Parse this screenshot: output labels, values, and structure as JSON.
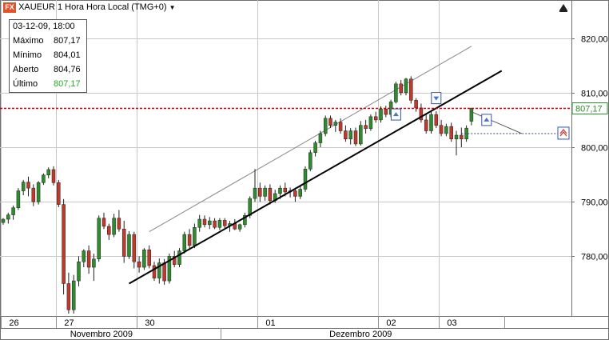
{
  "title": {
    "symbol_label": "XAUEUR 1 Hora Hora Local (TMG+0)",
    "logo_text": "FX",
    "logo_color": "#e0522c"
  },
  "infobox": {
    "date": "03-12-09, 18:00",
    "rows": [
      {
        "label": "Máximo",
        "value": "807,17"
      },
      {
        "label": "Mínimo",
        "value": "804,01"
      },
      {
        "label": "Aberto",
        "value": "804,76"
      },
      {
        "label": "Último",
        "value": "807,17",
        "color": "#22aa22"
      }
    ]
  },
  "colors": {
    "up": "#2e8b2e",
    "down": "#c0392b",
    "current_line": "#cc0000",
    "grid": "#c8c8c8",
    "trend": "#000000",
    "channel": "#888888"
  },
  "chart_data": {
    "type": "candlestick",
    "ylim": [
      769,
      825
    ],
    "y_ticks": [
      "820,00",
      "810,00",
      "800,00",
      "790,00",
      "780,00"
    ],
    "y_tick_values": [
      820,
      810,
      800,
      790,
      780
    ],
    "current_price_label": "807,17",
    "current_price": 807.17,
    "x_day_labels": [
      {
        "label": "26",
        "index": 0
      },
      {
        "label": "27",
        "index": 11
      },
      {
        "label": "30",
        "index": 27
      },
      {
        "label": "01",
        "index": 51
      },
      {
        "label": "02",
        "index": 75
      },
      {
        "label": "03",
        "index": 87
      }
    ],
    "x_month_labels": [
      {
        "label": "Novembro 2009",
        "start": 0,
        "end": 39
      },
      {
        "label": "Dezembro 2009",
        "start": 39,
        "end": 103
      }
    ],
    "candles": [
      [
        786.2,
        787.0,
        785.8,
        786.8
      ],
      [
        786.8,
        788.0,
        786.0,
        787.6
      ],
      [
        787.6,
        789.3,
        786.7,
        788.9
      ],
      [
        788.9,
        792.5,
        788.5,
        792.0
      ],
      [
        792.0,
        794.0,
        791.2,
        793.6
      ],
      [
        793.6,
        794.6,
        791.0,
        792.5
      ],
      [
        792.5,
        793.2,
        789.2,
        790.0
      ],
      [
        790.0,
        793.8,
        789.5,
        793.5
      ],
      [
        793.5,
        795.2,
        793.1,
        794.9
      ],
      [
        794.9,
        796.3,
        794.3,
        795.9
      ],
      [
        795.9,
        796.5,
        793.0,
        793.5
      ],
      [
        793.5,
        794.0,
        789.0,
        789.5
      ],
      [
        789.5,
        790.5,
        773.0,
        775.0
      ],
      [
        775.0,
        777.0,
        769.5,
        770.2
      ],
      [
        770.2,
        776.6,
        769.5,
        775.5
      ],
      [
        775.5,
        780.0,
        774.5,
        779.0
      ],
      [
        779.0,
        781.3,
        778.0,
        781.0
      ],
      [
        781.0,
        782.0,
        776.8,
        778.0
      ],
      [
        778.0,
        780.5,
        775.5,
        779.5
      ],
      [
        779.5,
        787.5,
        779.0,
        787.0
      ],
      [
        787.0,
        788.0,
        785.0,
        785.5
      ],
      [
        785.5,
        786.0,
        783.0,
        784.0
      ],
      [
        784.0,
        787.8,
        783.5,
        787.0
      ],
      [
        787.0,
        788.5,
        784.5,
        785.0
      ],
      [
        785.0,
        786.5,
        778.8,
        780.0
      ],
      [
        780.0,
        784.6,
        779.5,
        784.0
      ],
      [
        784.0,
        784.5,
        777.8,
        779.0
      ],
      [
        779.0,
        780.0,
        777.0,
        778.0
      ],
      [
        778.0,
        781.5,
        777.5,
        781.2
      ],
      [
        781.2,
        782.0,
        777.8,
        778.3
      ],
      [
        778.3,
        779.0,
        775.5,
        776.0
      ],
      [
        776.0,
        779.6,
        775.0,
        778.8
      ],
      [
        778.8,
        779.5,
        774.8,
        775.5
      ],
      [
        775.5,
        780.5,
        775.0,
        780.0
      ],
      [
        780.0,
        781.0,
        778.0,
        778.5
      ],
      [
        778.5,
        781.5,
        778.0,
        781.0
      ],
      [
        781.0,
        784.5,
        780.5,
        784.0
      ],
      [
        784.0,
        785.0,
        781.5,
        782.0
      ],
      [
        782.0,
        786.0,
        781.5,
        785.3
      ],
      [
        785.3,
        787.6,
        784.5,
        786.8
      ],
      [
        786.8,
        787.5,
        785.3,
        785.8
      ],
      [
        785.8,
        787.2,
        785.0,
        786.5
      ],
      [
        786.5,
        787.0,
        785.0,
        785.3
      ],
      [
        785.3,
        787.0,
        784.8,
        786.6
      ],
      [
        786.6,
        787.0,
        785.2,
        785.6
      ],
      [
        785.6,
        786.5,
        784.5,
        786.0
      ],
      [
        786.0,
        786.8,
        784.8,
        785.0
      ],
      [
        785.0,
        786.0,
        784.5,
        785.8
      ],
      [
        785.8,
        788.0,
        785.3,
        787.5
      ],
      [
        787.5,
        791.0,
        787.0,
        790.6
      ],
      [
        790.6,
        796.0,
        790.0,
        792.5
      ],
      [
        792.5,
        793.5,
        790.0,
        791.0
      ],
      [
        791.0,
        793.0,
        790.2,
        792.5
      ],
      [
        792.5,
        793.2,
        789.5,
        790.2
      ],
      [
        790.2,
        792.2,
        789.8,
        791.5
      ],
      [
        791.5,
        793.0,
        790.5,
        792.5
      ],
      [
        792.5,
        793.5,
        791.0,
        791.8
      ],
      [
        791.8,
        792.6,
        790.8,
        792.0
      ],
      [
        792.0,
        792.5,
        790.0,
        791.0
      ],
      [
        791.0,
        793.0,
        790.5,
        792.3
      ],
      [
        792.3,
        796.5,
        791.8,
        796.0
      ],
      [
        796.0,
        799.5,
        795.6,
        799.0
      ],
      [
        799.0,
        801.2,
        798.3,
        800.8
      ],
      [
        800.8,
        803.0,
        800.0,
        802.5
      ],
      [
        802.5,
        805.8,
        802.0,
        805.3
      ],
      [
        805.3,
        805.8,
        803.5,
        804.0
      ],
      [
        804.0,
        805.0,
        802.8,
        804.6
      ],
      [
        804.6,
        805.3,
        802.5,
        803.0
      ],
      [
        803.0,
        804.0,
        801.0,
        801.5
      ],
      [
        801.5,
        803.5,
        800.5,
        803.0
      ],
      [
        803.0,
        803.6,
        800.2,
        800.6
      ],
      [
        800.6,
        804.8,
        800.3,
        804.0
      ],
      [
        804.0,
        805.0,
        802.5,
        803.4
      ],
      [
        803.4,
        806.0,
        803.0,
        805.6
      ],
      [
        805.6,
        806.5,
        804.5,
        805.0
      ],
      [
        805.0,
        807.5,
        804.5,
        807.0
      ],
      [
        807.0,
        807.6,
        805.5,
        806.0
      ],
      [
        806.0,
        808.7,
        805.5,
        808.3
      ],
      [
        808.3,
        812.0,
        808.0,
        811.6
      ],
      [
        811.6,
        812.3,
        809.5,
        810.0
      ],
      [
        810.0,
        812.7,
        809.5,
        812.5
      ],
      [
        812.5,
        813.0,
        808.0,
        808.6
      ],
      [
        808.6,
        809.0,
        806.5,
        807.2
      ],
      [
        807.2,
        808.0,
        804.5,
        805.0
      ],
      [
        805.0,
        806.0,
        802.5,
        803.0
      ],
      [
        803.0,
        806.5,
        802.5,
        806.0
      ],
      [
        806.0,
        806.6,
        803.5,
        804.0
      ],
      [
        804.0,
        805.0,
        802.0,
        802.5
      ],
      [
        802.5,
        804.3,
        802.0,
        803.8
      ],
      [
        803.8,
        804.5,
        801.0,
        801.5
      ],
      [
        801.5,
        803.0,
        798.5,
        802.2
      ],
      [
        802.2,
        803.6,
        800.0,
        801.5
      ],
      [
        801.5,
        804.0,
        801.0,
        803.5
      ],
      [
        804.76,
        807.17,
        804.01,
        807.17
      ]
    ],
    "trend_line": {
      "from": [
        25,
        775
      ],
      "to": [
        99,
        814
      ]
    },
    "channel_line": {
      "from": [
        29,
        784.5
      ],
      "to": [
        93,
        818.5
      ]
    },
    "trend_ray": {
      "from": [
        93,
        806.5
      ],
      "to": [
        103,
        802.5
      ]
    },
    "horizontal_level": 802.5,
    "markers": [
      {
        "index": 78,
        "price": 806,
        "kind": "up"
      },
      {
        "index": 86,
        "price": 809,
        "kind": "down"
      },
      {
        "index": 96,
        "price": 805,
        "kind": "up"
      }
    ]
  }
}
